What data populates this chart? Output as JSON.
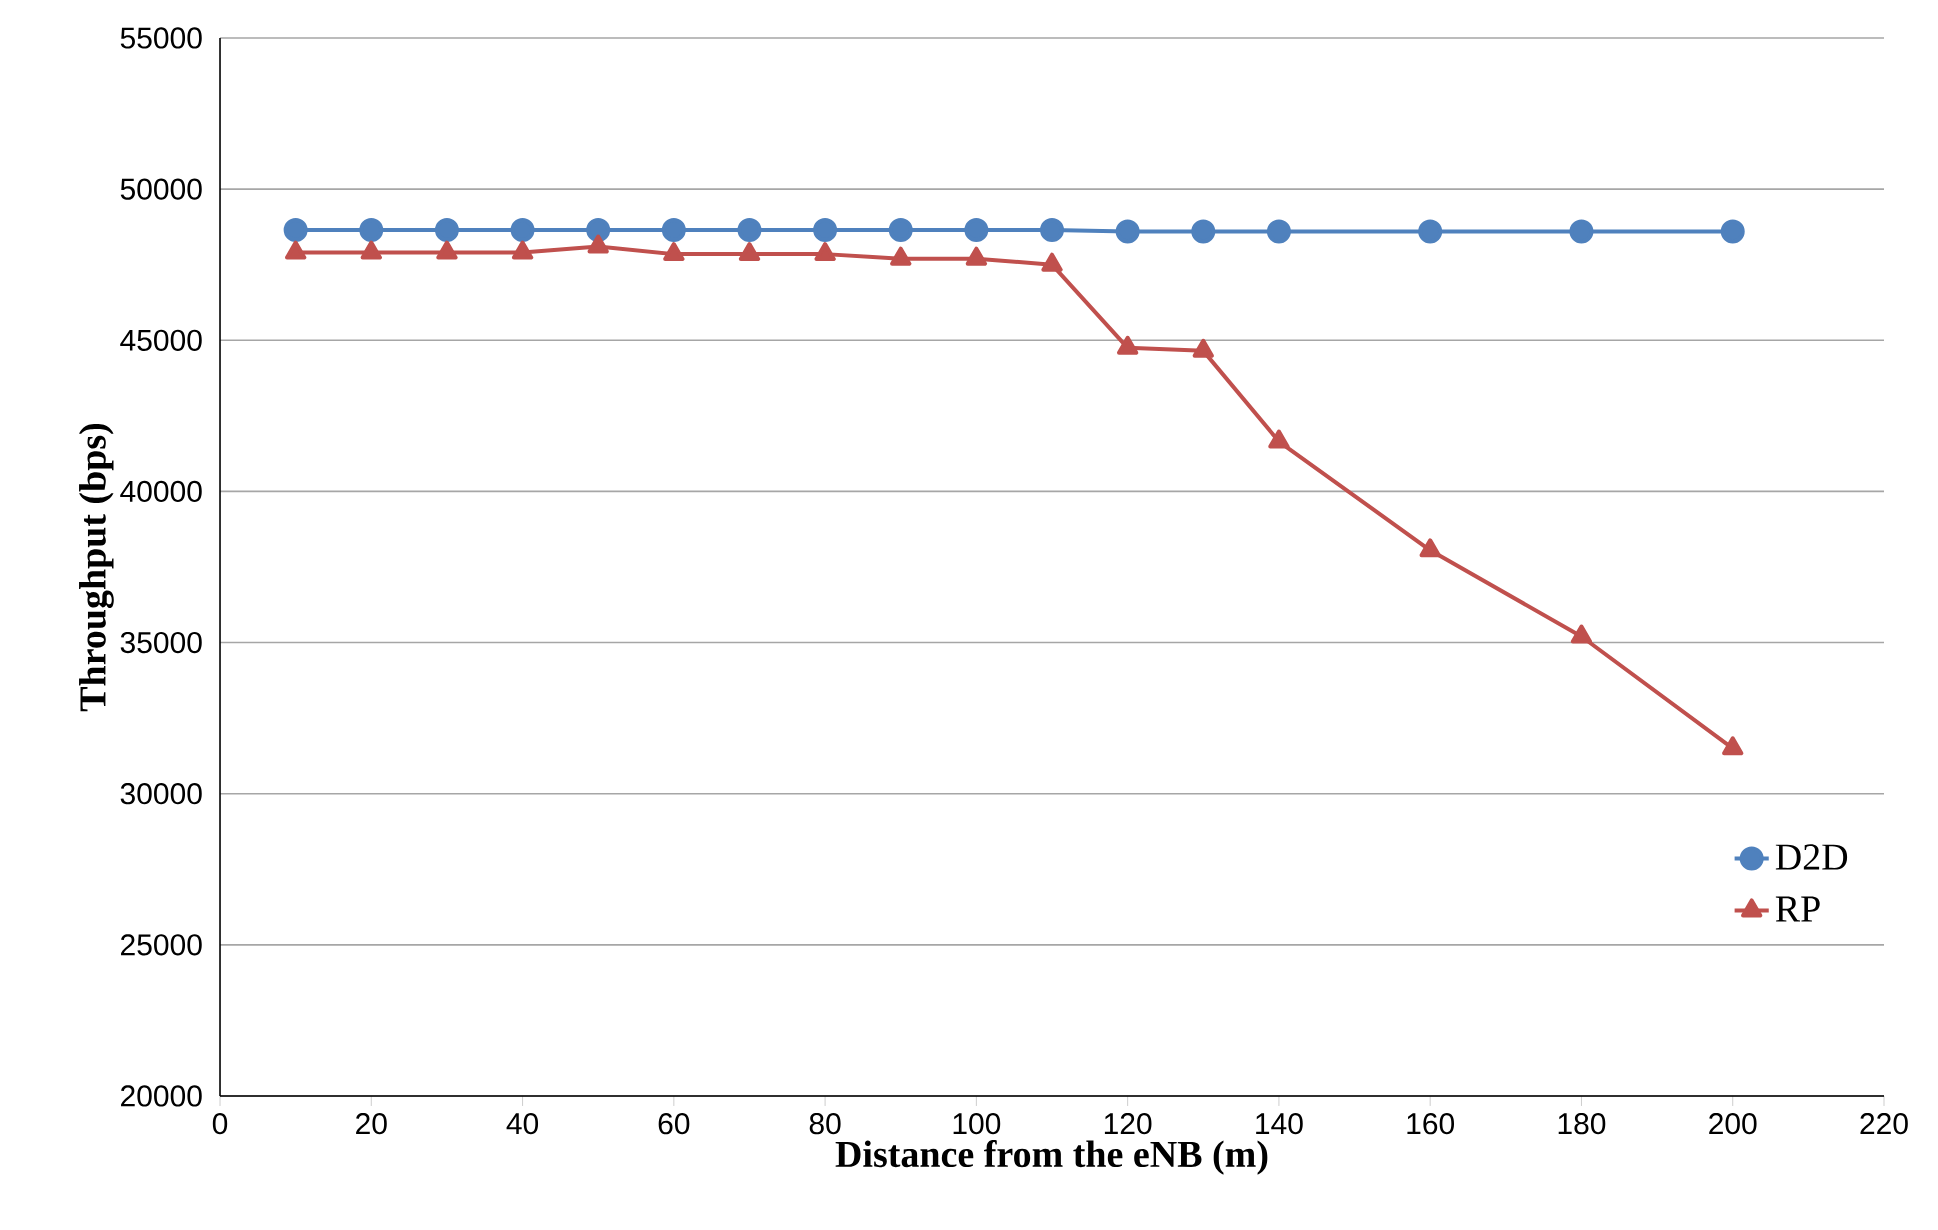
{
  "chart_data": {
    "type": "line",
    "xlabel": "Distance from the eNB (m)",
    "ylabel": "Throughput (bps)",
    "x": [
      10,
      20,
      30,
      40,
      50,
      60,
      70,
      80,
      90,
      100,
      110,
      120,
      130,
      140,
      160,
      180,
      200
    ],
    "series": [
      {
        "name": "D2D",
        "color": "#4f81bd",
        "marker": "circle",
        "values": [
          48650,
          48650,
          48650,
          48650,
          48650,
          48650,
          48650,
          48650,
          48650,
          48650,
          48650,
          48600,
          48600,
          48600,
          48600,
          48600,
          48600
        ]
      },
      {
        "name": "RP",
        "color": "#c0504d",
        "marker": "triangle",
        "values": [
          47900,
          47900,
          47900,
          47900,
          48100,
          47850,
          47850,
          47850,
          47700,
          47700,
          47500,
          44750,
          44650,
          41650,
          38050,
          35200,
          31500
        ]
      }
    ],
    "xlim": [
      0,
      220
    ],
    "xticks": [
      0,
      20,
      40,
      60,
      80,
      100,
      120,
      140,
      160,
      180,
      200,
      220
    ],
    "ylim": [
      20000,
      55000
    ],
    "yticks": [
      20000,
      25000,
      30000,
      35000,
      40000,
      45000,
      50000,
      55000
    ],
    "grid": "y",
    "legend": "right",
    "line_style": "solid"
  }
}
